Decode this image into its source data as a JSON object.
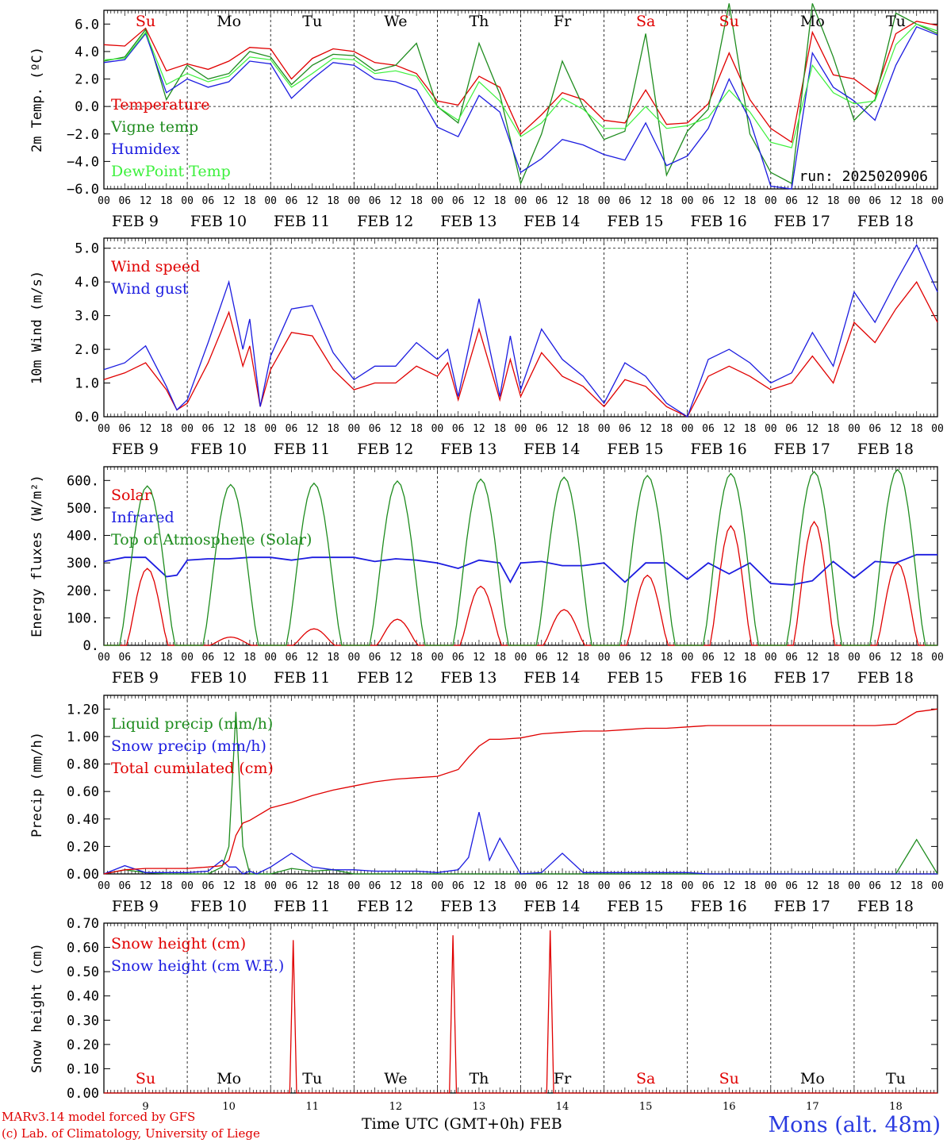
{
  "colors": {
    "red": "#e00000",
    "green": "#1e8c1e",
    "blue": "#1c1ce0",
    "lightgreen": "#3cf03c",
    "black": "#000000"
  },
  "days": [
    {
      "abbr": "Su",
      "date": "FEB  9",
      "num": "9",
      "weekend": true
    },
    {
      "abbr": "Mo",
      "date": "FEB 10",
      "num": "10",
      "weekend": false
    },
    {
      "abbr": "Tu",
      "date": "FEB 11",
      "num": "11",
      "weekend": false
    },
    {
      "abbr": "We",
      "date": "FEB 12",
      "num": "12",
      "weekend": false
    },
    {
      "abbr": "Th",
      "date": "FEB 13",
      "num": "13",
      "weekend": false
    },
    {
      "abbr": "Fr",
      "date": "FEB 14",
      "num": "14",
      "weekend": false
    },
    {
      "abbr": "Sa",
      "date": "FEB 15",
      "num": "15",
      "weekend": true
    },
    {
      "abbr": "Su",
      "date": "FEB 16",
      "num": "16",
      "weekend": true
    },
    {
      "abbr": "Mo",
      "date": "FEB 17",
      "num": "17",
      "weekend": false
    },
    {
      "abbr": "Tu",
      "date": "FEB 18",
      "num": "18",
      "weekend": false
    }
  ],
  "hour_labels": [
    "00",
    "06",
    "12",
    "18"
  ],
  "footer": {
    "credit_line1": "MARv3.14 model forced by GFS",
    "credit_line2": "(c) Lab. of Climatology, University of Liege",
    "xlabel": "Time UTC (GMT+0h) FEB",
    "station": "Mons (alt. 48m)"
  },
  "chart_data": [
    {
      "id": "temperature",
      "type": "line",
      "ylabel": "2m Temp. (ºC)",
      "ylim": [
        -6,
        7
      ],
      "yticks": [
        -6,
        -4,
        -2,
        0,
        2,
        4,
        6
      ],
      "ytick_labels": [
        "−6.0",
        "−4.0",
        "−2.0",
        "0.0",
        "2.0",
        "4.0",
        "6.0"
      ],
      "ref_line": 0,
      "annotation": "run: 2025020906",
      "day_labels": "top",
      "x": [
        0,
        6,
        12,
        18,
        24,
        30,
        36,
        42,
        48,
        54,
        60,
        66,
        72,
        78,
        84,
        90,
        96,
        102,
        108,
        114,
        120,
        126,
        132,
        138,
        144,
        150,
        156,
        162,
        168,
        174,
        180,
        186,
        192,
        198,
        204,
        210,
        216,
        222,
        228,
        234,
        240
      ],
      "series": [
        {
          "name": "Temperature",
          "color": "red",
          "values": [
            4.5,
            4.4,
            5.7,
            2.6,
            3.1,
            2.7,
            3.3,
            4.3,
            4.2,
            2.0,
            3.5,
            4.2,
            4.0,
            3.2,
            3.0,
            2.4,
            0.4,
            0.1,
            2.2,
            1.4,
            -2.0,
            -0.6,
            1.0,
            0.5,
            -1.0,
            -1.2,
            1.2,
            -1.3,
            -1.2,
            0.2,
            3.9,
            0.5,
            -1.6,
            -2.6,
            5.4,
            2.3,
            2.0,
            0.9,
            5.3,
            6.2,
            5.9
          ]
        },
        {
          "name": "Vigne temp",
          "color": "green",
          "values": [
            3.3,
            3.6,
            5.6,
            0.5,
            3.0,
            2.0,
            2.4,
            4.0,
            3.6,
            1.6,
            3.0,
            3.8,
            3.7,
            2.6,
            3.0,
            4.6,
            0.0,
            -1.2,
            4.6,
            0.9,
            -5.6,
            -2.0,
            3.3,
            0.0,
            -2.4,
            -1.8,
            5.3,
            -5.0,
            -1.8,
            -0.2,
            7.5,
            -2.0,
            -4.8,
            -5.6,
            7.5,
            3.6,
            -1.0,
            0.5,
            6.8,
            6.0,
            5.3
          ]
        },
        {
          "name": "Humidex",
          "color": "blue",
          "values": [
            3.2,
            3.4,
            5.3,
            1.0,
            2.0,
            1.4,
            1.8,
            3.3,
            3.1,
            0.6,
            2.0,
            3.2,
            3.0,
            2.0,
            1.8,
            1.2,
            -1.5,
            -2.2,
            0.8,
            -0.4,
            -4.8,
            -3.8,
            -2.4,
            -2.8,
            -3.5,
            -3.9,
            -1.2,
            -4.3,
            -3.6,
            -1.6,
            2.0,
            -1.0,
            -5.8,
            -6.0,
            3.9,
            1.4,
            0.4,
            -1.0,
            3.0,
            5.8,
            5.2
          ]
        },
        {
          "name": "DewPoint Temp",
          "color": "lightgreen",
          "values": [
            3.4,
            3.5,
            5.4,
            1.6,
            2.4,
            1.8,
            2.2,
            3.6,
            3.4,
            1.4,
            2.4,
            3.5,
            3.4,
            2.4,
            2.6,
            2.2,
            0.0,
            -1.0,
            1.8,
            0.4,
            -2.2,
            -1.2,
            0.6,
            -0.2,
            -1.6,
            -1.6,
            0.0,
            -1.6,
            -1.4,
            -0.8,
            1.2,
            -0.4,
            -2.6,
            -3.0,
            3.0,
            1.0,
            0.2,
            0.4,
            4.5,
            6.0,
            5.5
          ]
        }
      ]
    },
    {
      "id": "wind",
      "type": "line",
      "ylabel": "10m Wind (m/s)",
      "ylim": [
        0,
        5.3
      ],
      "yticks": [
        0,
        1,
        2,
        3,
        4,
        5
      ],
      "ytick_labels": [
        "0.0",
        "1.0",
        "2.0",
        "3.0",
        "4.0",
        "5.0"
      ],
      "ref_line": 5,
      "day_labels": "none",
      "x": [
        0,
        6,
        12,
        18,
        21,
        24,
        30,
        36,
        40,
        42,
        45,
        48,
        54,
        60,
        66,
        72,
        78,
        84,
        90,
        96,
        99,
        102,
        108,
        114,
        117,
        120,
        126,
        132,
        138,
        144,
        150,
        156,
        162,
        168,
        174,
        180,
        186,
        192,
        198,
        204,
        210,
        216,
        222,
        228,
        234,
        240
      ],
      "series": [
        {
          "name": "Wind speed",
          "color": "red",
          "values": [
            1.1,
            1.3,
            1.6,
            0.8,
            0.2,
            0.4,
            1.6,
            3.1,
            1.5,
            2.1,
            0.3,
            1.4,
            2.5,
            2.4,
            1.4,
            0.8,
            1.0,
            1.0,
            1.5,
            1.2,
            1.6,
            0.5,
            2.6,
            0.5,
            1.7,
            0.6,
            1.9,
            1.2,
            0.9,
            0.3,
            1.1,
            0.9,
            0.3,
            0.0,
            1.2,
            1.5,
            1.2,
            0.8,
            1.0,
            1.8,
            1.0,
            2.8,
            2.2,
            3.2,
            4.0,
            2.8
          ]
        },
        {
          "name": "Wind gust",
          "color": "blue",
          "values": [
            1.4,
            1.6,
            2.1,
            0.9,
            0.2,
            0.5,
            2.2,
            4.0,
            2.0,
            2.9,
            0.3,
            1.8,
            3.2,
            3.3,
            1.9,
            1.1,
            1.5,
            1.5,
            2.2,
            1.7,
            2.0,
            0.6,
            3.5,
            0.6,
            2.4,
            0.8,
            2.6,
            1.7,
            1.2,
            0.4,
            1.6,
            1.2,
            0.4,
            0.0,
            1.7,
            2.0,
            1.6,
            1.0,
            1.3,
            2.5,
            1.5,
            3.7,
            2.8,
            4.0,
            5.1,
            3.7
          ]
        }
      ]
    },
    {
      "id": "energy",
      "type": "line",
      "ylabel": "Energy fluxes (W/m²)",
      "ylim": [
        0,
        650
      ],
      "yticks": [
        0,
        100,
        200,
        300,
        400,
        500,
        600
      ],
      "ytick_labels": [
        "0.",
        "100.",
        "200.",
        "300.",
        "400.",
        "500.",
        "600."
      ],
      "day_labels": "none",
      "x": [
        0,
        6,
        12,
        18,
        21,
        24,
        30,
        36,
        42,
        48,
        54,
        60,
        66,
        72,
        78,
        84,
        90,
        96,
        102,
        108,
        114,
        117,
        120,
        126,
        132,
        138,
        144,
        150,
        156,
        162,
        168,
        174,
        180,
        186,
        192,
        198,
        204,
        210,
        216,
        222,
        228,
        234,
        240
      ],
      "series": [
        {
          "name": "Solar",
          "color": "red",
          "peaks": [
            [
              12.5,
              280
            ],
            [
              36.5,
              30
            ],
            [
              60.5,
              60
            ],
            [
              84.5,
              95
            ],
            [
              108.5,
              215
            ],
            [
              132.5,
              130
            ],
            [
              156.5,
              255
            ],
            [
              180.5,
              435
            ],
            [
              204.5,
              450
            ],
            [
              228.5,
              300
            ]
          ]
        },
        {
          "name": "Infrared",
          "color": "blue",
          "values": [
            305,
            320,
            320,
            250,
            255,
            310,
            315,
            315,
            320,
            320,
            310,
            320,
            320,
            320,
            305,
            315,
            310,
            300,
            280,
            310,
            300,
            230,
            300,
            305,
            290,
            290,
            300,
            230,
            300,
            300,
            240,
            300,
            260,
            300,
            225,
            220,
            235,
            305,
            245,
            305,
            300,
            330,
            330
          ]
        },
        {
          "name": "Top of Atmosphere (Solar)",
          "color": "green",
          "peaks": [
            [
              12.5,
              580
            ],
            [
              36.5,
              585
            ],
            [
              60.5,
              590
            ],
            [
              84.5,
              598
            ],
            [
              108.5,
              605
            ],
            [
              132.5,
              612
            ],
            [
              156.5,
              618
            ],
            [
              180.5,
              625
            ],
            [
              204.5,
              632
            ],
            [
              228.5,
              640
            ]
          ]
        }
      ]
    },
    {
      "id": "precip",
      "type": "line",
      "ylabel": "Precip (mm/h)",
      "ylim": [
        0,
        1.3
      ],
      "yticks": [
        0,
        0.2,
        0.4,
        0.6,
        0.8,
        1.0,
        1.2
      ],
      "ytick_labels": [
        "0.00",
        "0.20",
        "0.40",
        "0.60",
        "0.80",
        "1.00",
        "1.20"
      ],
      "day_labels": "none",
      "x": [
        0,
        6,
        12,
        18,
        24,
        30,
        34,
        36,
        38,
        40,
        42,
        44,
        48,
        54,
        60,
        66,
        72,
        78,
        84,
        90,
        96,
        102,
        105,
        108,
        111,
        114,
        120,
        126,
        132,
        138,
        144,
        150,
        156,
        162,
        168,
        174,
        180,
        186,
        192,
        198,
        204,
        210,
        216,
        222,
        228,
        234,
        240
      ],
      "series": [
        {
          "name": "Liquid precip (mm/h)",
          "color": "green",
          "values": [
            0,
            0.03,
            0.01,
            0,
            0,
            0,
            0.05,
            0.2,
            1.18,
            0.2,
            0,
            0,
            0,
            0.04,
            0.02,
            0.03,
            0,
            0,
            0,
            0,
            0,
            0,
            0,
            0,
            0,
            0,
            0,
            0,
            0,
            0,
            0,
            0,
            0,
            0,
            0,
            0,
            0,
            0,
            0,
            0,
            0,
            0,
            0,
            0,
            0,
            0.25,
            0
          ]
        },
        {
          "name": "Snow precip (mm/h)",
          "color": "blue",
          "values": [
            0,
            0.06,
            0.01,
            0.01,
            0.01,
            0.02,
            0.1,
            0.05,
            0.05,
            0,
            0.02,
            0,
            0.05,
            0.15,
            0.05,
            0.03,
            0.03,
            0.02,
            0.02,
            0.02,
            0.01,
            0.03,
            0.12,
            0.45,
            0.1,
            0.26,
            0,
            0.01,
            0.15,
            0.01,
            0.01,
            0.01,
            0.01,
            0.01,
            0.01,
            0,
            0,
            0,
            0,
            0,
            0,
            0,
            0,
            0,
            0,
            0,
            0
          ]
        },
        {
          "name": "Total cumulated (cm)",
          "color": "red",
          "values": [
            0,
            0.03,
            0.04,
            0.04,
            0.04,
            0.05,
            0.06,
            0.1,
            0.28,
            0.37,
            0.39,
            0.42,
            0.48,
            0.52,
            0.57,
            0.61,
            0.64,
            0.67,
            0.69,
            0.7,
            0.71,
            0.76,
            0.85,
            0.93,
            0.98,
            0.98,
            0.99,
            1.02,
            1.03,
            1.04,
            1.04,
            1.05,
            1.06,
            1.06,
            1.07,
            1.08,
            1.08,
            1.08,
            1.08,
            1.08,
            1.08,
            1.08,
            1.08,
            1.08,
            1.09,
            1.18,
            1.2
          ]
        }
      ]
    },
    {
      "id": "snow",
      "type": "line",
      "ylabel": "Snow height (cm)",
      "ylim": [
        0,
        0.7
      ],
      "yticks": [
        0,
        0.1,
        0.2,
        0.3,
        0.4,
        0.5,
        0.6,
        0.7
      ],
      "ytick_labels": [
        "0.00",
        "0.10",
        "0.20",
        "0.30",
        "0.40",
        "0.50",
        "0.60",
        "0.70"
      ],
      "day_labels": "bottom",
      "series": [
        {
          "name": "Snow height (cm)",
          "color": "red",
          "spikes": [
            [
              54.5,
              0.63
            ],
            [
              100.5,
              0.65
            ],
            [
              128.5,
              0.67
            ]
          ]
        },
        {
          "name": "Snow height (cm W.E.)",
          "color": "blue",
          "values": []
        }
      ]
    }
  ]
}
